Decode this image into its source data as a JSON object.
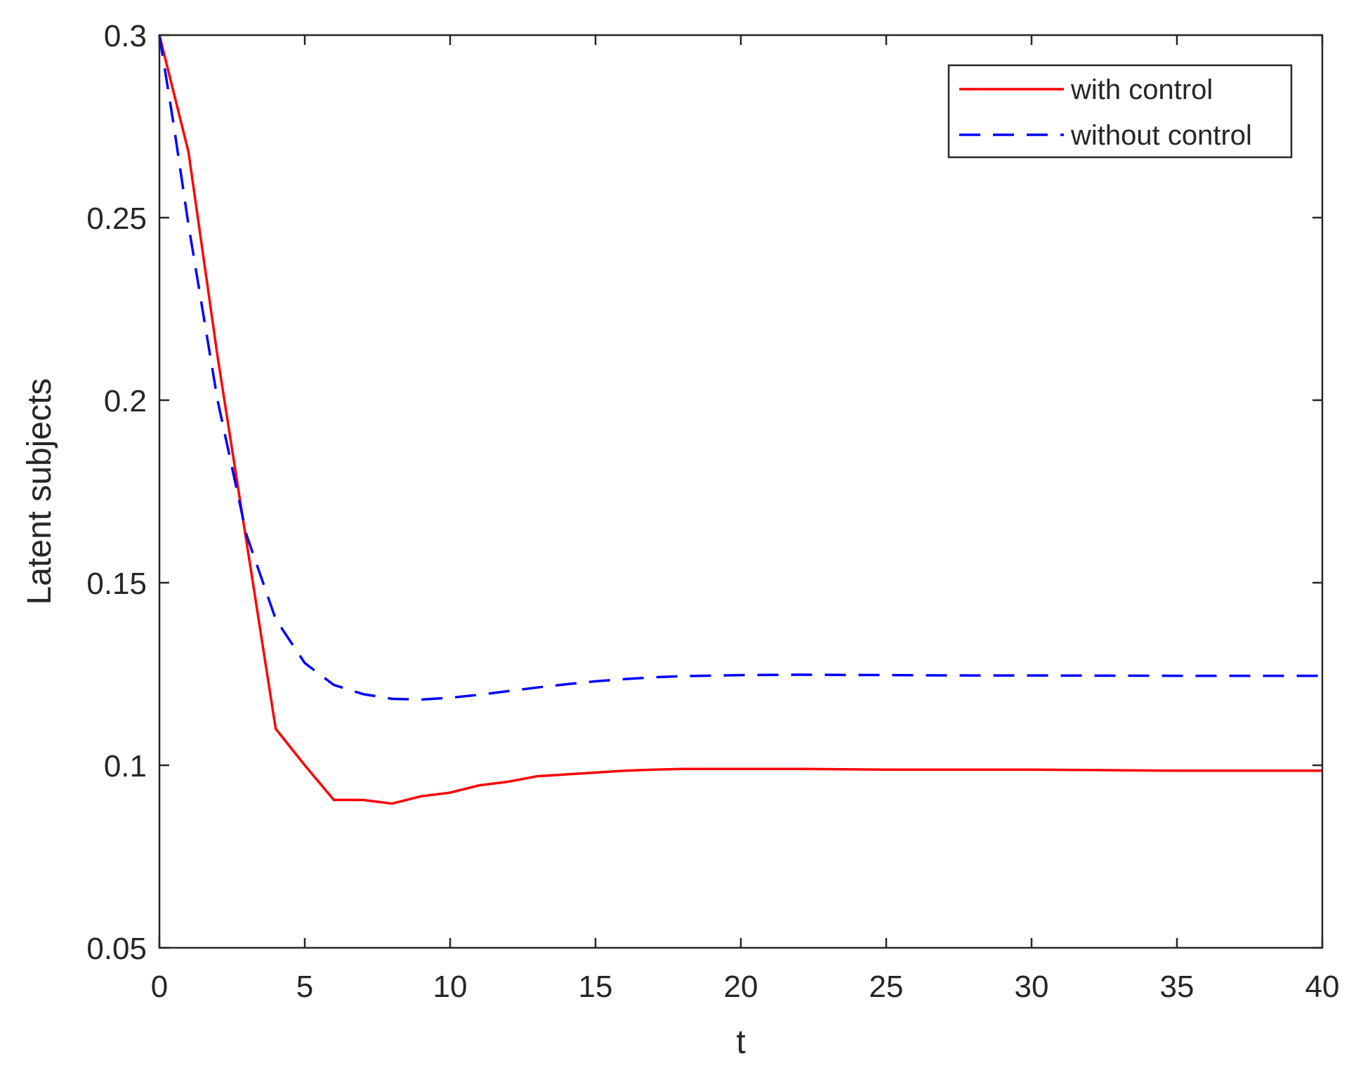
{
  "chart_data": {
    "type": "line",
    "xlabel": "t",
    "ylabel": "Latent subjects",
    "xlim": [
      0,
      40
    ],
    "ylim": [
      0.05,
      0.3
    ],
    "xticks": [
      "0",
      "5",
      "10",
      "15",
      "20",
      "25",
      "30",
      "35",
      "40"
    ],
    "yticks": [
      "0.05",
      "0.1",
      "0.15",
      "0.2",
      "0.25",
      "0.3"
    ],
    "grid": false,
    "legend_position": "top-right",
    "series": [
      {
        "name": "with control",
        "color": "#ff0000",
        "style": "solid",
        "x": [
          0,
          1,
          2,
          3,
          4,
          5,
          6,
          7,
          8,
          9,
          10,
          11,
          12,
          13,
          14,
          15,
          16,
          17,
          18,
          20,
          22,
          25,
          28,
          30,
          32,
          35,
          38,
          40
        ],
        "y": [
          0.3,
          0.268,
          0.212,
          0.161,
          0.11,
          0.1,
          0.0905,
          0.0905,
          0.0895,
          0.0915,
          0.0925,
          0.0945,
          0.0955,
          0.097,
          0.0975,
          0.098,
          0.0985,
          0.0988,
          0.099,
          0.099,
          0.099,
          0.0988,
          0.0988,
          0.0988,
          0.0987,
          0.0985,
          0.0985,
          0.0985
        ]
      },
      {
        "name": "without control",
        "color": "#0000ff",
        "style": "dashed",
        "x": [
          0,
          0.5,
          1,
          2,
          3,
          4,
          5,
          6,
          7,
          8,
          9,
          10,
          11,
          12,
          13,
          14,
          15,
          16,
          17,
          18,
          20,
          22,
          25,
          28,
          30,
          35,
          40
        ],
        "y": [
          0.3,
          0.275,
          0.248,
          0.2,
          0.163,
          0.14,
          0.128,
          0.122,
          0.1195,
          0.1182,
          0.118,
          0.1185,
          0.1193,
          0.1203,
          0.1213,
          0.1222,
          0.123,
          0.1236,
          0.1241,
          0.1244,
          0.1247,
          0.1248,
          0.1247,
          0.1246,
          0.1246,
          0.1245,
          0.1245
        ]
      }
    ]
  }
}
